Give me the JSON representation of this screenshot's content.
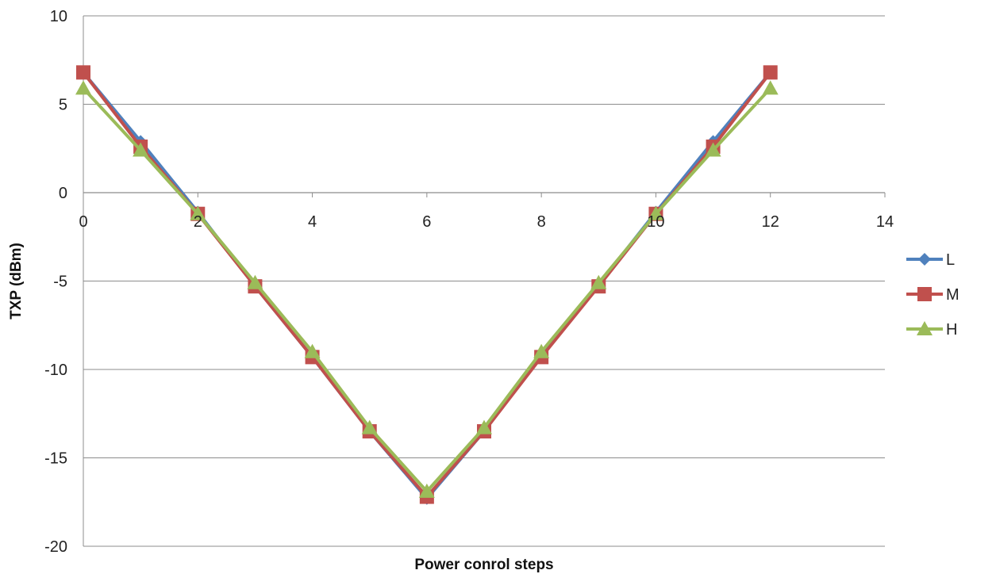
{
  "chart_data": {
    "type": "line",
    "title": "",
    "xlabel": "Power conrol steps",
    "ylabel": "TXP (dBm)",
    "xlim": [
      0,
      14
    ],
    "ylim": [
      -20,
      10
    ],
    "x_ticks": [
      "0",
      "2",
      "4",
      "6",
      "8",
      "10",
      "12",
      "14"
    ],
    "y_ticks": [
      "10",
      "5",
      "0",
      "-5",
      "-10",
      "-15",
      "-20"
    ],
    "grid": "horizontal",
    "legend_position": "right",
    "x": [
      0,
      1,
      2,
      3,
      4,
      5,
      6,
      7,
      8,
      9,
      10,
      11,
      12
    ],
    "series": [
      {
        "name": "L",
        "color": "#4F81BD",
        "marker": "diamond",
        "values": [
          6.8,
          2.9,
          -1.1,
          -5.3,
          -9.3,
          -13.5,
          -17.3,
          -13.5,
          -9.2,
          -5.2,
          -1.1,
          2.9,
          6.8
        ]
      },
      {
        "name": "M",
        "color": "#C0504D",
        "marker": "square",
        "values": [
          6.8,
          2.6,
          -1.2,
          -5.3,
          -9.3,
          -13.5,
          -17.2,
          -13.5,
          -9.3,
          -5.3,
          -1.2,
          2.6,
          6.8
        ]
      },
      {
        "name": "H",
        "color": "#9BBB59",
        "marker": "triangle",
        "values": [
          5.9,
          2.4,
          -1.2,
          -5.1,
          -9.0,
          -13.3,
          -16.9,
          -13.3,
          -9.0,
          -5.1,
          -1.2,
          2.4,
          5.9
        ]
      }
    ]
  }
}
